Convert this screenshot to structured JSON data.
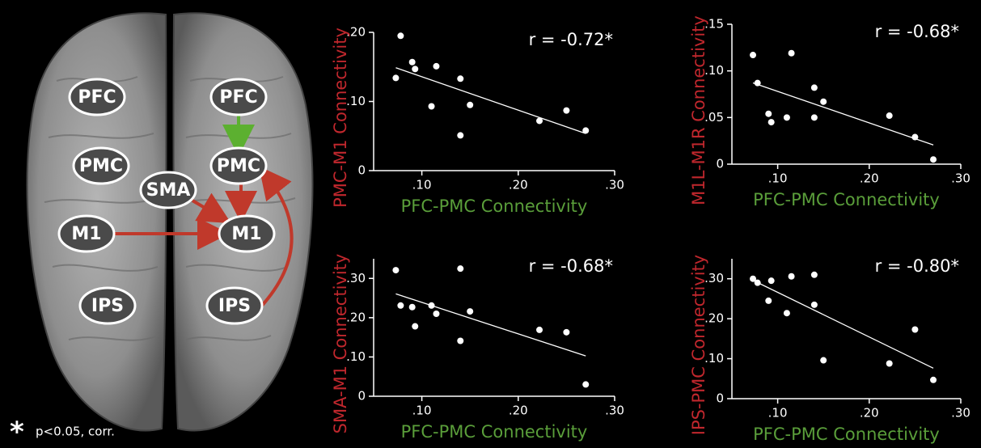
{
  "diagram": {
    "nodes": [
      {
        "label": "PFC"
      },
      {
        "label": "PMC"
      },
      {
        "label": "M1"
      },
      {
        "label": "IPS"
      },
      {
        "label": "SMA"
      },
      {
        "label": "PFC"
      },
      {
        "label": "PMC"
      },
      {
        "label": "M1"
      },
      {
        "label": "IPS"
      }
    ]
  },
  "footnote": {
    "symbol": "*",
    "text": "p<0.05, corr."
  },
  "chart_data": [
    {
      "type": "scatter",
      "ylabel": "PMC-M1 Connectivity",
      "xlabel": "PFC-PMC Connectivity",
      "annotation": "r = -0.72*",
      "x": [
        0.073,
        0.078,
        0.09,
        0.093,
        0.11,
        0.115,
        0.14,
        0.14,
        0.15,
        0.222,
        0.25,
        0.27
      ],
      "values": [
        0.134,
        0.195,
        0.157,
        0.147,
        0.093,
        0.151,
        0.133,
        0.051,
        0.095,
        0.072,
        0.087,
        0.058
      ],
      "xlim": [
        0.05,
        0.3
      ],
      "ylim": [
        0,
        0.2
      ],
      "xticks": [
        {
          "value": 0.1,
          "label": ".10"
        },
        {
          "value": 0.2,
          "label": ".20"
        },
        {
          "value": 0.3,
          "label": ".30"
        }
      ],
      "yticks": [
        0,
        {
          "value": 0.1,
          "label": ".10"
        },
        {
          "value": 0.2,
          "label": ".20"
        }
      ],
      "color": "#ffffff",
      "ylabel_color": "#c0272d",
      "xlabel_color": "#5a9e3a"
    },
    {
      "type": "scatter",
      "ylabel": "M1L-M1R Connectivity",
      "xlabel": "PFC-PMC Connectivity",
      "annotation": "r = -0.68*",
      "x": [
        0.073,
        0.078,
        0.09,
        0.093,
        0.11,
        0.115,
        0.14,
        0.14,
        0.15,
        0.222,
        0.25,
        0.27
      ],
      "values": [
        0.117,
        0.087,
        0.054,
        0.045,
        0.05,
        0.119,
        0.082,
        0.05,
        0.067,
        0.052,
        0.029,
        0.005
      ],
      "xlim": [
        0.05,
        0.3
      ],
      "ylim": [
        0,
        0.15
      ],
      "xticks": [
        {
          "value": 0.1,
          "label": ".10"
        },
        {
          "value": 0.2,
          "label": ".20"
        },
        {
          "value": 0.3,
          "label": ".30"
        }
      ],
      "yticks": [
        0,
        {
          "value": 0.05,
          "label": ".05"
        },
        {
          "value": 0.1,
          "label": ".10"
        },
        {
          "value": 0.15,
          "label": ".15"
        }
      ],
      "color": "#ffffff",
      "ylabel_color": "#c0272d",
      "xlabel_color": "#5a9e3a"
    },
    {
      "type": "scatter",
      "ylabel": "SMA-M1 Connectivity",
      "xlabel": "PFC-PMC Connectivity",
      "annotation": "r = -0.68*",
      "x": [
        0.073,
        0.078,
        0.09,
        0.093,
        0.11,
        0.115,
        0.14,
        0.14,
        0.15,
        0.222,
        0.25,
        0.27
      ],
      "values": [
        0.321,
        0.231,
        0.227,
        0.178,
        0.231,
        0.21,
        0.325,
        0.141,
        0.216,
        0.169,
        0.163,
        0.03
      ],
      "xlim": [
        0.05,
        0.3
      ],
      "ylim": [
        0,
        0.35
      ],
      "xticks": [
        {
          "value": 0.1,
          "label": ".10"
        },
        {
          "value": 0.2,
          "label": ".20"
        },
        {
          "value": 0.3,
          "label": ".30"
        }
      ],
      "yticks": [
        0,
        {
          "value": 0.1,
          "label": ".10"
        },
        {
          "value": 0.2,
          "label": ".20"
        },
        {
          "value": 0.3,
          "label": ".30"
        }
      ],
      "color": "#ffffff",
      "ylabel_color": "#c0272d",
      "xlabel_color": "#5a9e3a"
    },
    {
      "type": "scatter",
      "ylabel": "IPS-PMC Connectivity",
      "xlabel": "PFC-PMC Connectivity",
      "annotation": "r = -0.80*",
      "x": [
        0.073,
        0.078,
        0.09,
        0.093,
        0.11,
        0.115,
        0.14,
        0.14,
        0.15,
        0.222,
        0.25,
        0.27
      ],
      "values": [
        0.3,
        0.29,
        0.245,
        0.295,
        0.214,
        0.306,
        0.31,
        0.235,
        0.096,
        0.088,
        0.173,
        0.047
      ],
      "xlim": [
        0.05,
        0.3
      ],
      "ylim": [
        0,
        0.35
      ],
      "xticks": [
        {
          "value": 0.1,
          "label": ".10"
        },
        {
          "value": 0.2,
          "label": ".20"
        },
        {
          "value": 0.3,
          "label": ".30"
        }
      ],
      "yticks": [
        0,
        {
          "value": 0.1,
          "label": ".10"
        },
        {
          "value": 0.2,
          "label": ".20"
        },
        {
          "value": 0.3,
          "label": ".30"
        }
      ],
      "color": "#ffffff",
      "ylabel_color": "#c0272d",
      "xlabel_color": "#5a9e3a"
    }
  ]
}
